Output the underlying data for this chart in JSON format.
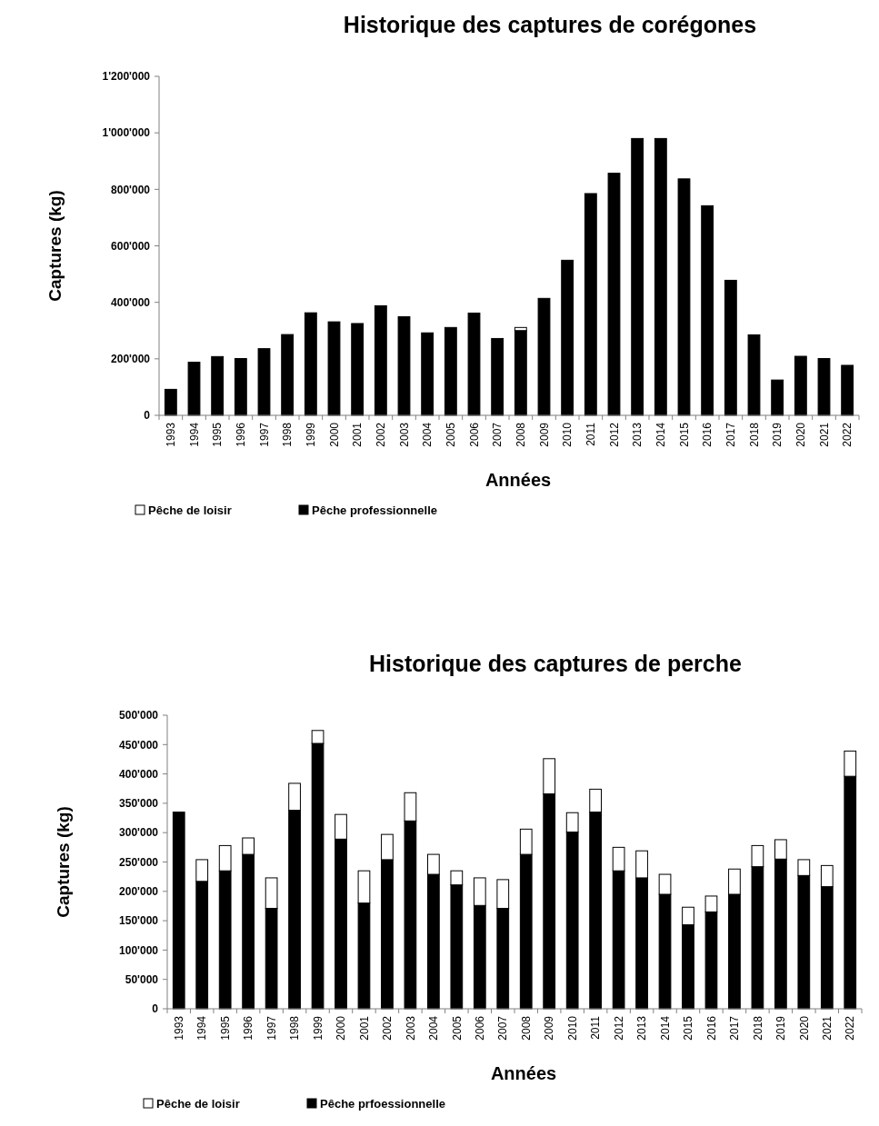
{
  "chart_data": [
    {
      "type": "bar",
      "stacked": true,
      "title": "Historique des captures de corégones",
      "xlabel": "Années",
      "ylabel": "Captures (kg)",
      "legend": "bottom left",
      "categories": [
        "1993",
        "1994",
        "1995",
        "1996",
        "1997",
        "1998",
        "1999",
        "2000",
        "2001",
        "2002",
        "2003",
        "2004",
        "2005",
        "2006",
        "2007",
        "2008",
        "2009",
        "2010",
        "2011",
        "2012",
        "2013",
        "2014",
        "2015",
        "2016",
        "2017",
        "2018",
        "2019",
        "2020",
        "2021",
        "2022"
      ],
      "series": [
        {
          "name": "Pêche professionnelle",
          "color": "#000000",
          "values": [
            92000,
            188000,
            208000,
            201000,
            236000,
            286000,
            363000,
            331000,
            325000,
            388000,
            349000,
            292000,
            311000,
            362000,
            272000,
            300000,
            414000,
            549000,
            785000,
            857000,
            980000,
            980000,
            837000,
            742000,
            478000,
            285000,
            125000,
            209000,
            201000,
            177000
          ]
        },
        {
          "name": "Pêche de loisir",
          "color": "#ffffff",
          "values": [
            0,
            0,
            0,
            0,
            0,
            0,
            0,
            0,
            0,
            0,
            0,
            0,
            0,
            0,
            0,
            11000,
            0,
            0,
            0,
            0,
            0,
            0,
            0,
            0,
            0,
            0,
            0,
            0,
            0,
            0
          ]
        }
      ],
      "ylim": [
        0,
        1200000
      ],
      "yticks": [
        0,
        {
          "value": 200000,
          "label": "200'000"
        },
        {
          "value": 400000,
          "label": "400'000"
        },
        {
          "value": 600000,
          "label": "600'000"
        },
        {
          "value": 800000,
          "label": "800'000"
        },
        {
          "value": 1000000,
          "label": "1'000'000"
        },
        {
          "value": 1200000,
          "label": "1'200'000"
        }
      ]
    },
    {
      "type": "bar",
      "stacked": true,
      "title": "Historique des captures de perche",
      "xlabel": "Années",
      "ylabel": "Captures (kg)",
      "legend": "bottom left",
      "categories": [
        "1993",
        "1994",
        "1995",
        "1996",
        "1997",
        "1998",
        "1999",
        "2000",
        "2001",
        "2002",
        "2003",
        "2004",
        "2005",
        "2006",
        "2007",
        "2008",
        "2009",
        "2010",
        "2011",
        "2012",
        "2013",
        "2014",
        "2015",
        "2016",
        "2017",
        "2018",
        "2019",
        "2020",
        "2021",
        "2022"
      ],
      "series": [
        {
          "name": "Pêche prfoessionnelle",
          "color": "#000000",
          "values": [
            335000,
            217000,
            235000,
            263000,
            171000,
            338000,
            452000,
            289000,
            180000,
            254000,
            320000,
            229000,
            211000,
            176000,
            171000,
            263000,
            366000,
            301000,
            335000,
            235000,
            223000,
            195000,
            143000,
            165000,
            195000,
            242000,
            255000,
            227000,
            208000,
            396000
          ]
        },
        {
          "name": "Pêche de loisir",
          "color": "#ffffff",
          "values": [
            0,
            37000,
            43000,
            28000,
            52000,
            46000,
            22000,
            42000,
            55000,
            43000,
            48000,
            34000,
            24000,
            47000,
            49000,
            43000,
            60000,
            33000,
            39000,
            40000,
            46000,
            34000,
            30000,
            27000,
            43000,
            36000,
            33000,
            27000,
            36000,
            43000
          ]
        }
      ],
      "ylim": [
        0,
        500000
      ],
      "yticks": [
        0,
        {
          "value": 50000,
          "label": "50'000"
        },
        {
          "value": 100000,
          "label": "100'000"
        },
        {
          "value": 150000,
          "label": "150'000"
        },
        {
          "value": 200000,
          "label": "200'000"
        },
        {
          "value": 250000,
          "label": "250'000"
        },
        {
          "value": 300000,
          "label": "300'000"
        },
        {
          "value": 350000,
          "label": "350'000"
        },
        {
          "value": 400000,
          "label": "400'000"
        },
        {
          "value": 450000,
          "label": "450'000"
        },
        {
          "value": 500000,
          "label": "500'000"
        }
      ]
    }
  ]
}
